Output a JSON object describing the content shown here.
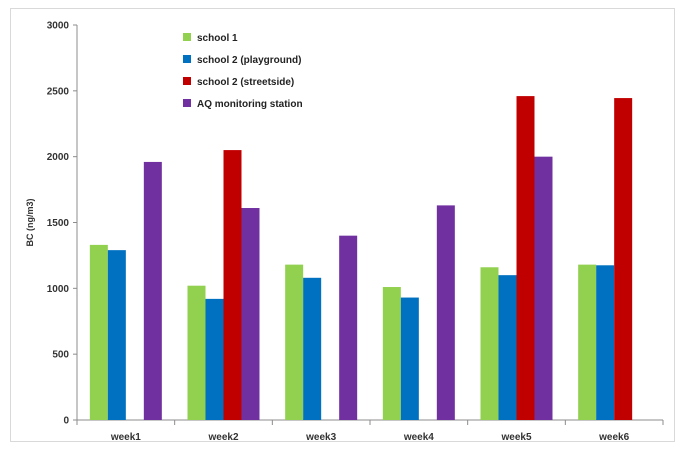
{
  "chart_data": {
    "type": "bar",
    "title": "",
    "xlabel": "",
    "ylabel": "BC (ng/m3)",
    "ylim": [
      0,
      3000
    ],
    "yticks": [
      0,
      500,
      1000,
      1500,
      2000,
      2500,
      3000
    ],
    "grid": false,
    "legend_position": "top-left",
    "categories": [
      "week1",
      "week2",
      "week3",
      "week4",
      "week5",
      "week6"
    ],
    "series": [
      {
        "name": "school 1",
        "color": "#92d050",
        "values": [
          1330,
          1020,
          1180,
          1010,
          1160,
          1180
        ]
      },
      {
        "name": "school 2 (playground)",
        "color": "#0070c0",
        "values": [
          1290,
          920,
          1080,
          930,
          1100,
          1175
        ]
      },
      {
        "name": "school 2 (streetside)",
        "color": "#c00000",
        "values": [
          null,
          2050,
          null,
          null,
          2460,
          2445
        ]
      },
      {
        "name": "AQ monitoring station",
        "color": "#7030a0",
        "values": [
          1960,
          1610,
          1400,
          1630,
          2000,
          null
        ]
      }
    ]
  }
}
